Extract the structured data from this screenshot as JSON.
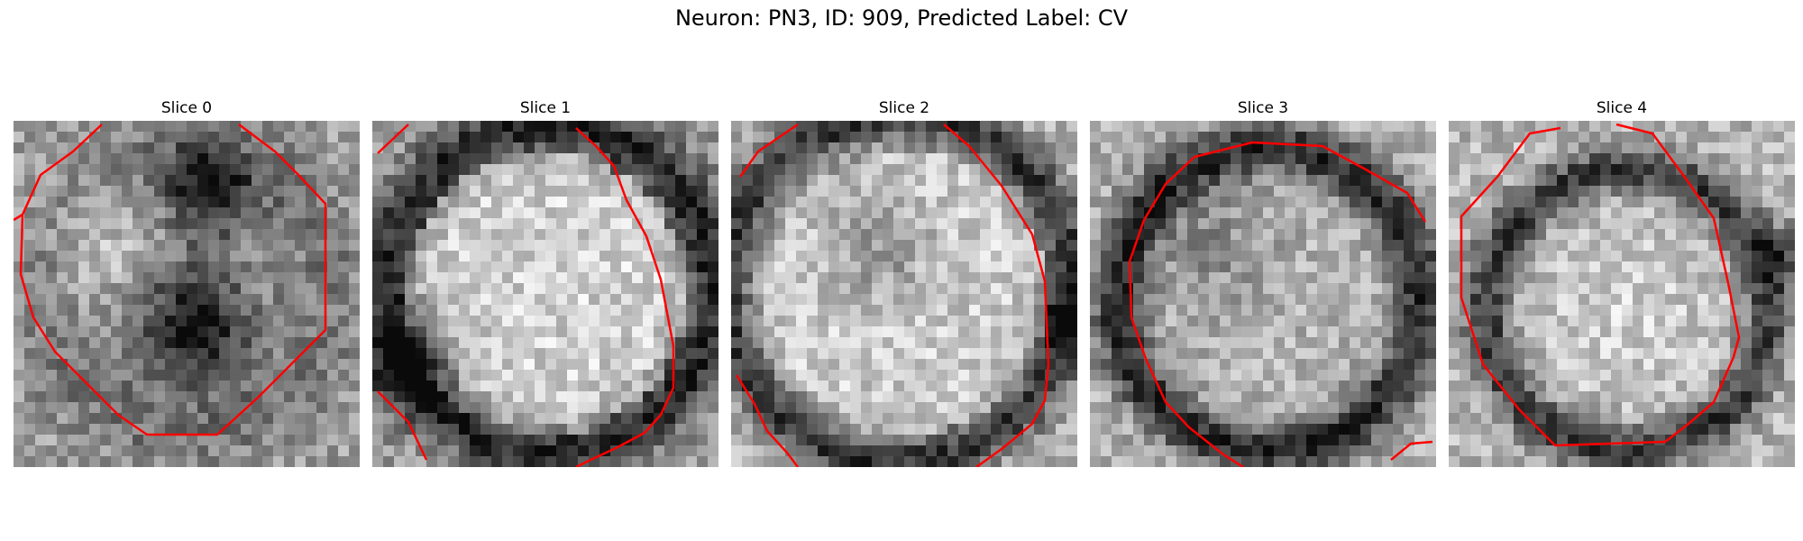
{
  "figure": {
    "title": "Neuron: PN3, ID: 909, Predicted Label: CV",
    "contour_color": "#ff0000"
  },
  "panels": [
    {
      "title": "Slice 0",
      "pattern": "dark-center-blobs",
      "seed": 11
    },
    {
      "title": "Slice 1",
      "pattern": "bright-soma",
      "seed": 23
    },
    {
      "title": "Slice 2",
      "pattern": "bright-soma-dark-rim",
      "seed": 37
    },
    {
      "title": "Slice 3",
      "pattern": "dark-ring",
      "seed": 51
    },
    {
      "title": "Slice 4",
      "pattern": "dark-ring-bright-center",
      "seed": 67
    }
  ]
}
